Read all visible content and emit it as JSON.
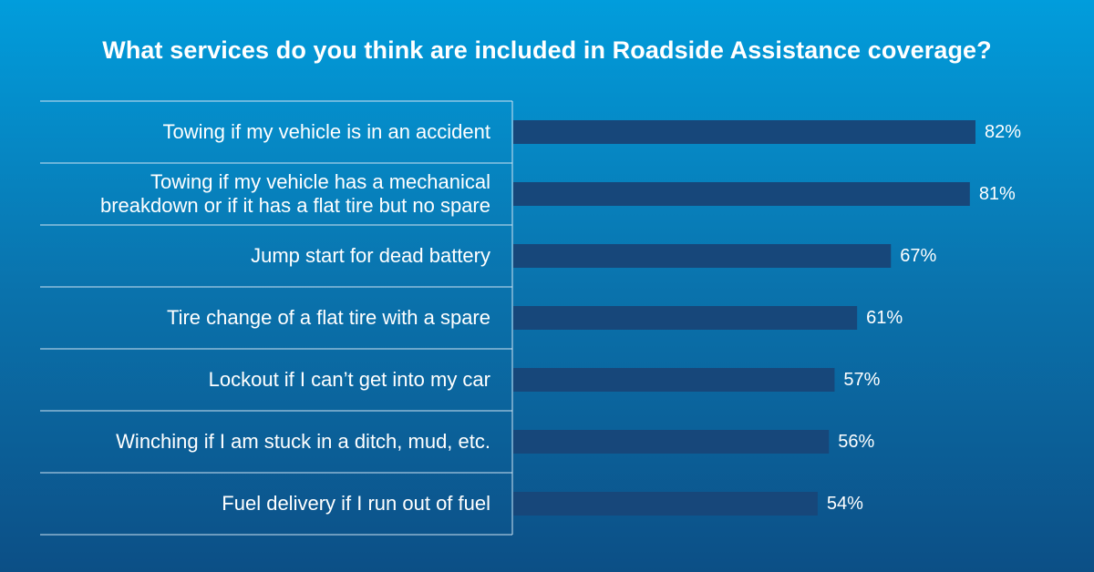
{
  "chart_data": {
    "type": "bar",
    "orientation": "horizontal",
    "title": "What services do you think are included in Roadside Assistance coverage?",
    "categories": [
      "Towing if my vehicle is in an accident",
      "Towing if my vehicle has a mechanical breakdown or if it has a flat tire but no spare",
      "Jump start for dead battery",
      "Tire change of a flat tire with a spare",
      "Lockout if I can’t get into my car",
      "Winching if I am stuck in a ditch, mud, etc.",
      "Fuel delivery if I run out of fuel"
    ],
    "category_lines": [
      [
        "Towing if my vehicle is in an accident"
      ],
      [
        "Towing if my vehicle has a mechanical",
        "breakdown or if it has a flat tire but no spare"
      ],
      [
        "Jump start for dead battery"
      ],
      [
        "Tire change of a flat tire with a spare"
      ],
      [
        "Lockout if I can’t get into my car"
      ],
      [
        "Winching if I am stuck in a ditch, mud, etc."
      ],
      [
        "Fuel delivery if I run out of fuel"
      ]
    ],
    "values": [
      82,
      81,
      67,
      61,
      57,
      56,
      54
    ],
    "value_labels": [
      "82%",
      "81%",
      "67%",
      "61%",
      "57%",
      "56%",
      "54%"
    ],
    "xlim": [
      0,
      100
    ],
    "unit": "%",
    "grid": false,
    "legend": "none",
    "colors": {
      "bar": "#17477a",
      "separator": "#cfe3f2",
      "background_top": "#019ddc",
      "background_bottom": "#0c4f86"
    }
  }
}
